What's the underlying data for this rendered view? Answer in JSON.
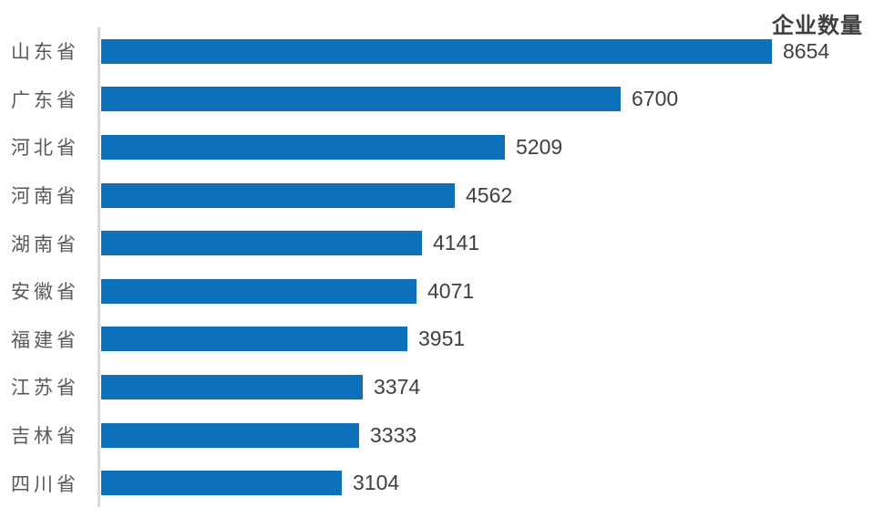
{
  "chart_data": {
    "type": "bar",
    "orientation": "horizontal",
    "title": "企业数量",
    "xlabel": "",
    "ylabel": "",
    "categories": [
      "山东省",
      "广东省",
      "河北省",
      "河南省",
      "湖南省",
      "安徽省",
      "福建省",
      "江苏省",
      "吉林省",
      "四川省"
    ],
    "values": [
      8654,
      6700,
      5209,
      4562,
      4141,
      4071,
      3951,
      3374,
      3333,
      3104
    ],
    "value_labels_shown": true,
    "xlim": [
      0,
      9000
    ],
    "grid": false,
    "legend": "none",
    "sort_order": "descending",
    "colors": {
      "bar": "#0c71ba",
      "axis_line": "#d9d9d9",
      "category_label": "#595959",
      "value_label": "#404040",
      "title": "#3f3f3f",
      "background": "#ffffff"
    }
  }
}
